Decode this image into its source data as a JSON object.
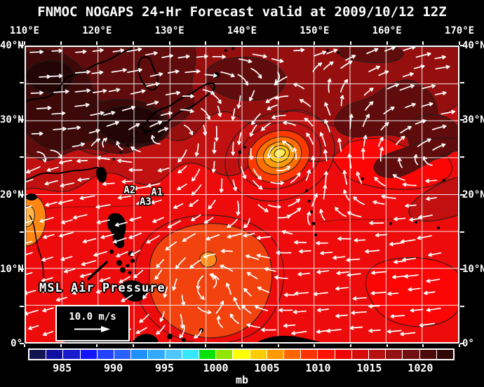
{
  "title": "FNMOC NOGAPS 24-Hr Forecast valid at 2009/10/12 12Z",
  "axes": {
    "lon_labels": [
      "110°E",
      "120°E",
      "130°E",
      "140°E",
      "150°E",
      "160°E",
      "170°E"
    ],
    "lat_labels": [
      "40°N",
      "30°N",
      "20°N",
      "10°N",
      "0°"
    ],
    "lon_range": [
      110,
      170
    ],
    "lat_range": [
      0,
      40
    ],
    "grid_step_deg": 5,
    "label_step_deg": 10
  },
  "map": {
    "field_label": "MSL Air Pressure",
    "wind_legend": {
      "speed_label": "10.0 m/s"
    },
    "annotations": [
      {
        "label": "A2",
        "lon": 124.4,
        "lat": 20.2
      },
      {
        "label": "A1",
        "lon": 128.2,
        "lat": 19.9
      },
      {
        "label": "A3",
        "lon": 126.6,
        "lat": 18.6
      }
    ],
    "features": {
      "typhoon_center": {
        "lon": 145.2,
        "lat": 25.4
      },
      "southern_low_center": {
        "lon": 135.5,
        "lat": 8.3
      }
    },
    "palette": {
      "sea_base": "#ee0b0b",
      "bright_red": "#fb0505",
      "north_band1": "#c11010",
      "north_band2": "#960f0f",
      "dark1": "#600c0c",
      "dark2": "#3c0808",
      "dark3": "#240505",
      "mid_red": "#c21010",
      "low_fill": "#f2420e",
      "low_core": "#ff8c1e",
      "west_orange": "#ff8712",
      "west_orange_core": "#ffb54a",
      "typhoon_rings": [
        "#ff3a00",
        "#ff6f00",
        "#ff9b08",
        "#ffc413",
        "#ffe95a"
      ],
      "contour": "#1d1d1d",
      "coast": "#000000",
      "grid": "#ffffff",
      "arrow": "#ffffff"
    }
  },
  "colorbar": {
    "units": "mb",
    "tick_labels": [
      "985",
      "990",
      "995",
      "1000",
      "1005",
      "1010",
      "1015",
      "1020"
    ],
    "cell_colors": [
      "#13134f",
      "#0f0fa0",
      "#1a1acd",
      "#1414ff",
      "#2440ff",
      "#2a60ff",
      "#1e90ff",
      "#34aaff",
      "#4fc6ff",
      "#35e6ff",
      "#0ae00a",
      "#90e600",
      "#ffff00",
      "#ffcc00",
      "#ff9900",
      "#ff6600",
      "#ff3300",
      "#ff1200",
      "#ee0202",
      "#d60d0d",
      "#b81111",
      "#941111",
      "#701010",
      "#4c0c0c",
      "#2f0707"
    ]
  }
}
